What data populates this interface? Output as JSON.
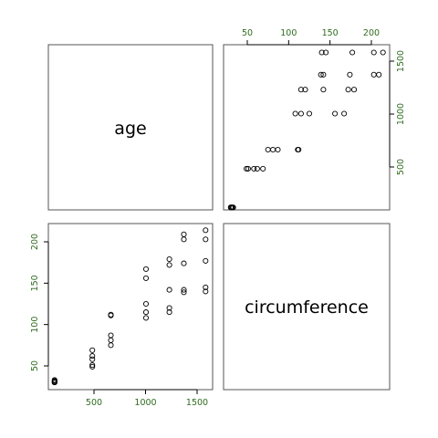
{
  "chart_data": {
    "type": "scatter",
    "variables": [
      "age",
      "circumference"
    ],
    "colors": {
      "tick_label": "#2f6b1f",
      "points": "#000000",
      "panel_border": "#555555"
    },
    "age_ticks": [
      500,
      1000,
      1500
    ],
    "circumference_ticks": [
      50,
      100,
      150,
      200
    ],
    "age_range": [
      118,
      1582
    ],
    "circumference_range": [
      30,
      214
    ],
    "points": [
      {
        "age": 118,
        "circumference": 30
      },
      {
        "age": 118,
        "circumference": 33
      },
      {
        "age": 118,
        "circumference": 32
      },
      {
        "age": 118,
        "circumference": 30
      },
      {
        "age": 118,
        "circumference": 31
      },
      {
        "age": 484,
        "circumference": 58
      },
      {
        "age": 484,
        "circumference": 69
      },
      {
        "age": 484,
        "circumference": 62
      },
      {
        "age": 484,
        "circumference": 51
      },
      {
        "age": 484,
        "circumference": 49
      },
      {
        "age": 664,
        "circumference": 87
      },
      {
        "age": 664,
        "circumference": 111
      },
      {
        "age": 664,
        "circumference": 112
      },
      {
        "age": 664,
        "circumference": 81
      },
      {
        "age": 664,
        "circumference": 75
      },
      {
        "age": 1004,
        "circumference": 115
      },
      {
        "age": 1004,
        "circumference": 156
      },
      {
        "age": 1004,
        "circumference": 167
      },
      {
        "age": 1004,
        "circumference": 125
      },
      {
        "age": 1004,
        "circumference": 108
      },
      {
        "age": 1231,
        "circumference": 120
      },
      {
        "age": 1231,
        "circumference": 172
      },
      {
        "age": 1231,
        "circumference": 179
      },
      {
        "age": 1231,
        "circumference": 142
      },
      {
        "age": 1231,
        "circumference": 115
      },
      {
        "age": 1372,
        "circumference": 142
      },
      {
        "age": 1372,
        "circumference": 203
      },
      {
        "age": 1372,
        "circumference": 209
      },
      {
        "age": 1372,
        "circumference": 174
      },
      {
        "age": 1372,
        "circumference": 139
      },
      {
        "age": 1582,
        "circumference": 145
      },
      {
        "age": 1582,
        "circumference": 203
      },
      {
        "age": 1582,
        "circumference": 214
      },
      {
        "age": 1582,
        "circumference": 177
      },
      {
        "age": 1582,
        "circumference": 140
      }
    ]
  }
}
